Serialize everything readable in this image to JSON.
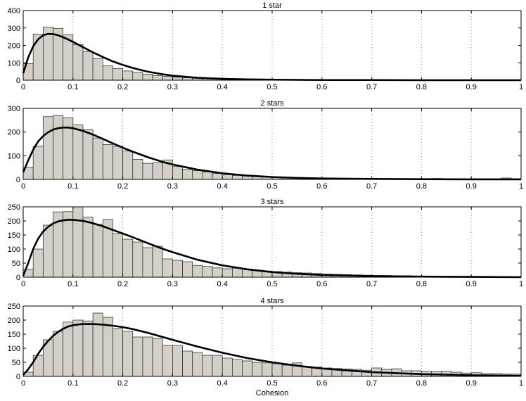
{
  "colors": {
    "bar_fill": "#d4d0c8",
    "bar_stroke": "#222222",
    "fit_line": "#000000",
    "grid": "#9a9a9a"
  },
  "chart_data": [
    {
      "type": "bar",
      "title": "1 star",
      "xlabel": "",
      "ylabel": "",
      "xlim": [
        0,
        1
      ],
      "ylim": [
        0,
        400
      ],
      "yticks": [
        0,
        100,
        200,
        300,
        400
      ],
      "xticks": [
        0,
        0.1,
        0.2,
        0.3,
        0.4,
        0.5,
        0.6,
        0.7,
        0.8,
        0.9,
        1
      ],
      "grid": "vertical dotted",
      "bin_width": 0.02,
      "histogram": [
        95,
        265,
        305,
        298,
        260,
        205,
        165,
        125,
        82,
        67,
        53,
        45,
        35,
        26,
        22,
        17,
        14,
        11,
        9,
        8,
        7,
        6,
        5,
        5,
        4,
        4,
        3,
        3,
        3,
        3,
        2,
        2,
        2,
        2,
        2,
        2,
        2,
        2,
        2,
        2,
        2,
        2,
        2,
        2,
        2,
        2,
        2,
        2,
        2,
        2
      ],
      "fit_curve": {
        "x": [
          0,
          0.01,
          0.02,
          0.03,
          0.04,
          0.05,
          0.06,
          0.07,
          0.08,
          0.09,
          0.1,
          0.12,
          0.14,
          0.16,
          0.18,
          0.2,
          0.22,
          0.25,
          0.28,
          0.3,
          0.35,
          0.4,
          0.45,
          0.5,
          0.55,
          0.6,
          0.7,
          0.8,
          0.9,
          1.0
        ],
        "y": [
          40,
          130,
          195,
          235,
          258,
          266,
          265,
          258,
          247,
          234,
          220,
          190,
          160,
          133,
          108,
          88,
          70,
          49,
          34,
          26,
          14,
          8,
          5,
          3,
          2,
          1,
          1,
          0,
          0,
          0
        ]
      }
    },
    {
      "type": "bar",
      "title": "2 stars",
      "xlabel": "",
      "ylabel": "",
      "xlim": [
        0,
        1
      ],
      "ylim": [
        0,
        300
      ],
      "yticks": [
        0,
        100,
        200,
        300
      ],
      "xticks": [
        0,
        0.1,
        0.2,
        0.3,
        0.4,
        0.5,
        0.6,
        0.7,
        0.8,
        0.9,
        1
      ],
      "grid": "vertical dotted",
      "bin_width": 0.02,
      "histogram": [
        50,
        140,
        265,
        270,
        260,
        230,
        210,
        175,
        147,
        140,
        120,
        85,
        68,
        70,
        82,
        55,
        42,
        37,
        32,
        25,
        20,
        17,
        14,
        12,
        10,
        9,
        8,
        6,
        5,
        5,
        5,
        4,
        4,
        4,
        4,
        3,
        3,
        3,
        3,
        3,
        3,
        4,
        3,
        3,
        3,
        3,
        3,
        3,
        6,
        3
      ],
      "fit_curve": {
        "x": [
          0,
          0.01,
          0.02,
          0.03,
          0.04,
          0.05,
          0.06,
          0.07,
          0.08,
          0.09,
          0.1,
          0.12,
          0.14,
          0.16,
          0.18,
          0.2,
          0.22,
          0.25,
          0.28,
          0.3,
          0.35,
          0.4,
          0.45,
          0.5,
          0.55,
          0.6,
          0.7,
          0.8,
          0.9,
          1.0
        ],
        "y": [
          30,
          80,
          125,
          160,
          183,
          199,
          210,
          216,
          219,
          219,
          216,
          205,
          189,
          171,
          152,
          134,
          117,
          94,
          74,
          63,
          41,
          26,
          16,
          10,
          6,
          4,
          2,
          1,
          0,
          0
        ]
      }
    },
    {
      "type": "bar",
      "title": "3 stars",
      "xlabel": "",
      "ylabel": "",
      "xlim": [
        0,
        1
      ],
      "ylim": [
        0,
        250
      ],
      "yticks": [
        0,
        50,
        100,
        150,
        200,
        250
      ],
      "xticks": [
        0,
        0.1,
        0.2,
        0.3,
        0.4,
        0.5,
        0.6,
        0.7,
        0.8,
        0.9,
        1
      ],
      "grid": "vertical dotted",
      "bin_width": 0.02,
      "histogram": [
        28,
        100,
        185,
        232,
        233,
        250,
        213,
        188,
        205,
        155,
        135,
        125,
        105,
        110,
        65,
        60,
        55,
        42,
        38,
        33,
        30,
        32,
        28,
        25,
        22,
        20,
        18,
        16,
        15,
        13,
        11,
        10,
        9,
        8,
        7,
        6,
        6,
        5,
        5,
        4,
        4,
        4,
        3,
        3,
        3,
        3,
        2,
        2,
        2,
        2
      ],
      "fit_curve": {
        "x": [
          0,
          0.01,
          0.02,
          0.03,
          0.04,
          0.05,
          0.06,
          0.07,
          0.08,
          0.09,
          0.1,
          0.12,
          0.14,
          0.16,
          0.18,
          0.2,
          0.22,
          0.25,
          0.28,
          0.3,
          0.35,
          0.4,
          0.45,
          0.5,
          0.55,
          0.6,
          0.7,
          0.8,
          0.9,
          1.0
        ],
        "y": [
          5,
          50,
          100,
          137,
          162,
          179,
          191,
          198,
          202,
          204,
          204,
          200,
          192,
          181,
          168,
          155,
          142,
          121,
          101,
          89,
          62,
          42,
          28,
          18,
          12,
          8,
          4,
          2,
          1,
          0
        ]
      }
    },
    {
      "type": "bar",
      "title": "4 stars",
      "xlabel": "Cohesion",
      "ylabel": "",
      "xlim": [
        0,
        1
      ],
      "ylim": [
        0,
        250
      ],
      "yticks": [
        0,
        50,
        100,
        150,
        200,
        250
      ],
      "xticks": [
        0,
        0.1,
        0.2,
        0.3,
        0.4,
        0.5,
        0.6,
        0.7,
        0.8,
        0.9,
        1
      ],
      "grid": "vertical dotted",
      "bin_width": 0.02,
      "histogram": [
        15,
        75,
        130,
        160,
        193,
        200,
        197,
        225,
        210,
        170,
        160,
        140,
        140,
        135,
        110,
        110,
        90,
        85,
        75,
        75,
        65,
        60,
        55,
        50,
        48,
        45,
        40,
        48,
        35,
        33,
        30,
        28,
        26,
        25,
        22,
        30,
        25,
        27,
        20,
        20,
        18,
        17,
        18,
        15,
        12,
        13,
        10,
        10,
        8,
        8
      ],
      "fit_curve": {
        "x": [
          0,
          0.01,
          0.02,
          0.03,
          0.04,
          0.05,
          0.06,
          0.07,
          0.08,
          0.09,
          0.1,
          0.12,
          0.14,
          0.16,
          0.18,
          0.2,
          0.22,
          0.25,
          0.28,
          0.3,
          0.35,
          0.4,
          0.45,
          0.5,
          0.55,
          0.6,
          0.7,
          0.8,
          0.9,
          1.0
        ],
        "y": [
          5,
          25,
          50,
          80,
          105,
          126,
          144,
          158,
          169,
          177,
          182,
          186,
          186,
          184,
          180,
          175,
          168,
          155,
          140,
          130,
          106,
          84,
          65,
          50,
          38,
          28,
          15,
          8,
          4,
          2
        ]
      }
    }
  ]
}
